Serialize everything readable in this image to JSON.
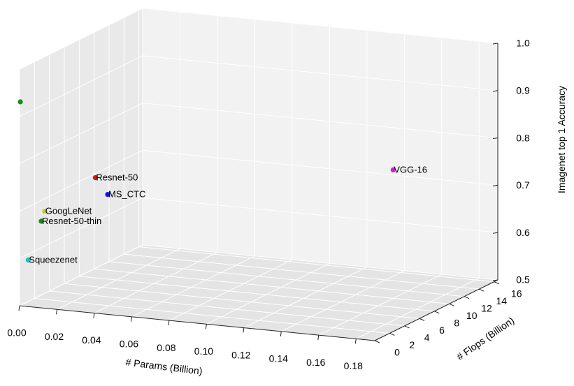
{
  "chart_data": {
    "type": "scatter3d",
    "xlabel": "# Params (Billion)",
    "ylabel": "# Flops (Billion)",
    "zlabel": "Imagenet top 1 Accuracy",
    "xlim": [
      0,
      0.19
    ],
    "ylim": [
      0,
      16.5
    ],
    "zlim": [
      0.5,
      1.0
    ],
    "xticks": [
      "0.00",
      "0.02",
      "0.04",
      "0.06",
      "0.08",
      "0.10",
      "0.12",
      "0.14",
      "0.16",
      "0.18"
    ],
    "xtick_values": [
      0,
      0.02,
      0.04,
      0.06,
      0.08,
      0.1,
      0.12,
      0.14,
      0.16,
      0.18
    ],
    "yticks": [
      "0",
      "2",
      "4",
      "6",
      "8",
      "10",
      "12",
      "14",
      "16"
    ],
    "ytick_values": [
      0,
      2,
      4,
      6,
      8,
      10,
      12,
      14,
      16
    ],
    "zticks": [
      "0.5",
      "0.6",
      "0.7",
      "0.8",
      "0.9",
      "1.0"
    ],
    "ztick_values": [
      0.5,
      0.6,
      0.7,
      0.8,
      0.9,
      1.0
    ],
    "grid": true,
    "points": [
      {
        "label": "",
        "x": 0.0,
        "y": 0.1,
        "z": 0.93,
        "color": "#1a8a1a"
      },
      {
        "label": "Resnet-50",
        "x": 0.025,
        "y": 3.9,
        "z": 0.75,
        "color": "#dd1111"
      },
      {
        "label": "GoogLeNet",
        "x": 0.007,
        "y": 1.6,
        "z": 0.69,
        "color": "#c8c832"
      },
      {
        "label": "Resnet-50-thin",
        "x": 0.006,
        "y": 1.4,
        "z": 0.67,
        "color": "#1a8a1a"
      },
      {
        "label": "MS_CTC",
        "x": 0.02,
        "y": 6.8,
        "z": 0.69,
        "color": "#1515dd"
      },
      {
        "label": "Squeezenet",
        "x": 0.001,
        "y": 0.9,
        "z": 0.59,
        "color": "#20c0c0"
      },
      {
        "label": "VGG-16",
        "x": 0.138,
        "y": 15.5,
        "z": 0.72,
        "color": "#cc22cc"
      }
    ]
  }
}
